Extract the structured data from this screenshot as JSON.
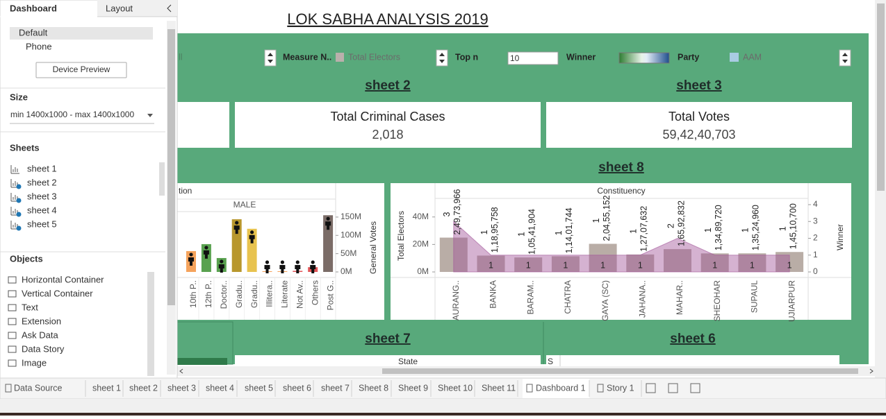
{
  "side_panel": {
    "tabs": [
      "Dashboard",
      "Layout"
    ],
    "devices": [
      "Default",
      "Phone"
    ],
    "device_preview": "Device Preview",
    "size_heading": "Size",
    "size_value": "min 1400x1000 - max 1400x1000",
    "sheets_heading": "Sheets",
    "sheets": [
      "sheet 1",
      "sheet 2",
      "sheet 3",
      "sheet 4",
      "sheet 5"
    ],
    "objects_heading": "Objects",
    "objects": [
      "Horizontal Container",
      "Vertical Container",
      "Text",
      "Extension",
      "Ask Data",
      "Data Story",
      "Image"
    ]
  },
  "dashboard": {
    "title": "LOK SABHA ANALYSIS 2019",
    "filters": {
      "partial_label": "ll",
      "measure_label": "Measure N..",
      "measure_value": "Total Electors",
      "topn_label": "Top n",
      "topn_value": "10",
      "winner_label": "Winner",
      "party_label": "Party",
      "party_value": "AAM"
    },
    "sheet_headers": [
      "sheet 2",
      "sheet 3",
      "sheet 8",
      "sheet 7",
      "sheet 6"
    ],
    "cards": [
      {
        "title": "Total Criminal Cases",
        "value": "2,018"
      },
      {
        "title": "Total Votes",
        "value": "59,42,40,703"
      }
    ],
    "table_header": "State",
    "table_partial": "S"
  },
  "chart_data": [
    {
      "type": "bar",
      "title": "tion",
      "subtitle": "MALE",
      "y_label": "General Votes",
      "categories": [
        "10th P..",
        "12th P..",
        "Doctor..",
        "Gradu..",
        "Gradu..",
        "Illitera..",
        "Literate",
        "Not Av..",
        "Others",
        "Post G.."
      ],
      "values": [
        57000000,
        76000000,
        38000000,
        144000000,
        118000000,
        2000000,
        2000000,
        3000000,
        13000000,
        155000000
      ],
      "colors": [
        "#f5a35c",
        "#59a14f",
        "#59a14f",
        "#b8972d",
        "#e8c34f",
        "#f5a35c",
        "#f5a35c",
        "#e15759",
        "#e15759",
        "#7b6c67"
      ],
      "ylim": [
        0,
        165000000
      ],
      "yticks": [
        {
          "value": 0,
          "label": "0M"
        },
        {
          "value": 50000000,
          "label": "50M"
        },
        {
          "value": 100000000,
          "label": "100M"
        },
        {
          "value": 150000000,
          "label": "150M"
        }
      ]
    },
    {
      "type": "combo",
      "title": "Constituency",
      "y_label": "Total Electors",
      "y2_label": "Winner",
      "categories": [
        "AURANG..",
        "BANKA",
        "BARAM..",
        "CHATRA",
        "GAYA (SC)",
        "JAHANA..",
        "MAHAR..",
        "SHEOHAR",
        "SUPAUL",
        "UJIARPUR"
      ],
      "series": [
        {
          "name": "Total Electors",
          "color": "#b9ada6",
          "values": [
            24973966,
            11895758,
            10541904,
            11401744,
            20455152,
            12707632,
            16592832,
            13489720,
            13524960,
            14510700
          ],
          "value_labels": [
            "2,49,73,966",
            "1,18,95,758",
            "1,05,41,904",
            "1,14,01,744",
            "2,04,55,152",
            "1,27,07,632",
            "1,65,92,832",
            "1,34,89,720",
            "1,35,24,960",
            "1,45,10,700"
          ]
        },
        {
          "name": "Winner",
          "color": "#a2559a",
          "axis": "y2",
          "values": [
            3,
            1,
            1,
            1,
            1,
            1,
            2,
            1,
            1,
            1
          ]
        }
      ],
      "ylim": [
        0,
        53000000
      ],
      "yticks": [
        {
          "value": 0,
          "label": "0M"
        },
        {
          "value": 20000000,
          "label": "20M"
        },
        {
          "value": 40000000,
          "label": "40M"
        }
      ],
      "y2lim": [
        0,
        4.33
      ],
      "y2ticks": [
        0,
        1,
        2,
        3,
        4
      ]
    }
  ],
  "bottom_tabs": [
    "Data Source",
    "sheet 1",
    "sheet 2",
    "sheet 3",
    "sheet 4",
    "sheet 5",
    "sheet 6",
    "sheet 7",
    "Sheet 8",
    "Sheet 9",
    "Sheet 10",
    "Sheet 11",
    "Dashboard 1",
    "Story 1"
  ]
}
